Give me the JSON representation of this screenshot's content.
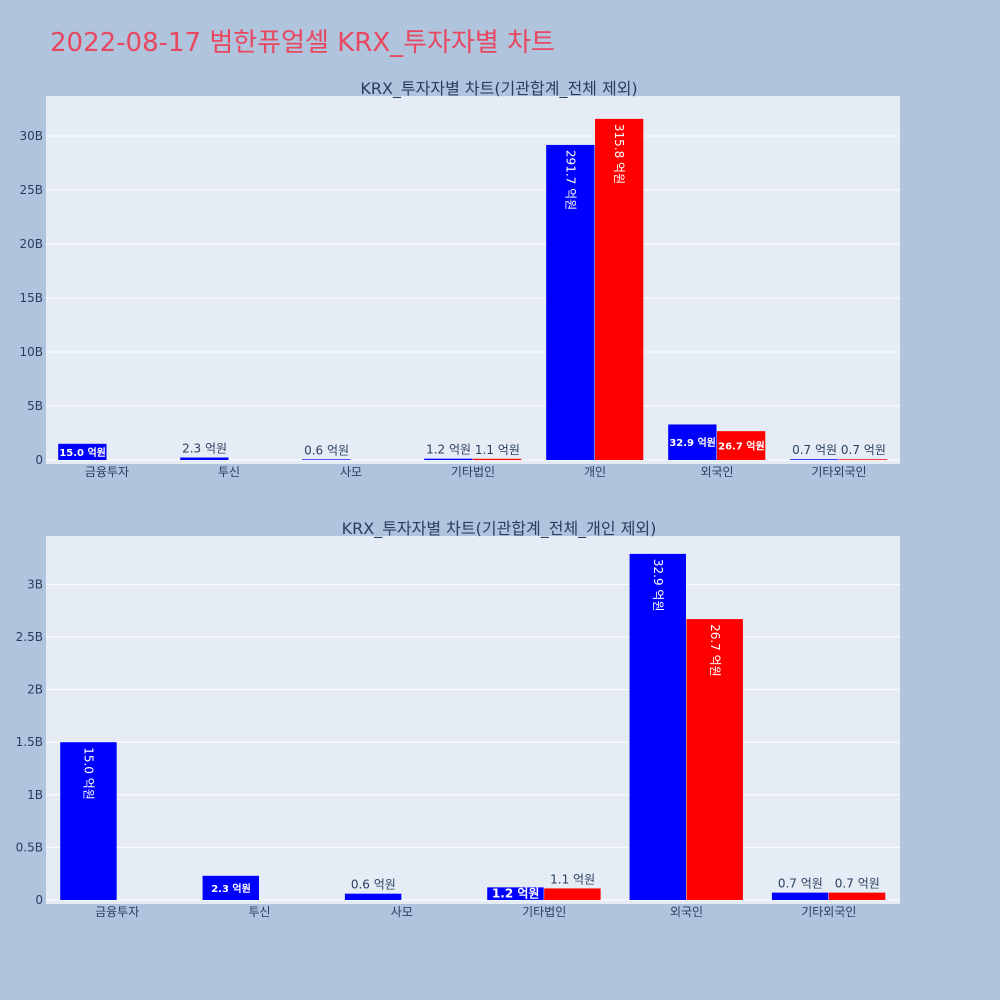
{
  "page": {
    "title": "2022-08-17 범한퓨얼셀 KRX_투자자별 차트"
  },
  "colors": {
    "buy": "#0000ff",
    "sell": "#ff0000",
    "title": "#e8475f",
    "background": "#b0c4de",
    "plot_background": "#e5ecf6",
    "text": "#2a3f5f"
  },
  "chart_data": [
    {
      "type": "bar",
      "title": "KRX_투자자별 차트(기관합계_전체 제외)",
      "categories": [
        "금융투자",
        "투신",
        "사모",
        "기타법인",
        "개인",
        "외국인",
        "기타외국인"
      ],
      "series": [
        {
          "color": "#0000ff",
          "values": [
            1500000000,
            230000000,
            60000000,
            120000000,
            29170000000,
            3290000000,
            70000000
          ],
          "labels": [
            "15.0 억원",
            "2.3 억원",
            "0.6 억원",
            "1.2 억원",
            "291.7 억원",
            "32.9 억원",
            "0.7 억원"
          ]
        },
        {
          "color": "#ff0000",
          "values": [
            0,
            0,
            0,
            110000000,
            31580000000,
            2670000000,
            70000000
          ],
          "labels": [
            "",
            "",
            "",
            "1.1 억원",
            "315.8 억원",
            "26.7 억원",
            "0.7 억원"
          ]
        }
      ],
      "yticks": [
        0,
        5000000000,
        10000000000,
        15000000000,
        20000000000,
        25000000000,
        30000000000
      ],
      "ytick_labels": [
        "0",
        "5B",
        "10B",
        "15B",
        "20B",
        "25B",
        "30B"
      ],
      "ylim": [
        0,
        33700000000
      ],
      "grid": true,
      "legend": "none"
    },
    {
      "type": "bar",
      "title": "KRX_투자자별 차트(기관합계_전체_개인 제외)",
      "categories": [
        "금융투자",
        "투신",
        "사모",
        "기타법인",
        "외국인",
        "기타외국인"
      ],
      "series": [
        {
          "color": "#0000ff",
          "values": [
            1500000000,
            230000000,
            60000000,
            120000000,
            3290000000,
            70000000
          ],
          "labels": [
            "15.0 억원",
            "2.3 억원",
            "0.6 억원",
            "1.2 억원",
            "32.9 억원",
            "0.7 억원"
          ]
        },
        {
          "color": "#ff0000",
          "values": [
            0,
            0,
            0,
            110000000,
            2670000000,
            70000000
          ],
          "labels": [
            "",
            "",
            "",
            "1.1 억원",
            "26.7 억원",
            "0.7 억원"
          ]
        }
      ],
      "yticks": [
        0,
        500000000,
        1000000000,
        1500000000,
        2000000000,
        2500000000,
        3000000000
      ],
      "ytick_labels": [
        "0",
        "0.5B",
        "1B",
        "1.5B",
        "2B",
        "2.5B",
        "3B"
      ],
      "ylim": [
        0,
        3460000000
      ],
      "grid": true,
      "legend": "none"
    }
  ]
}
